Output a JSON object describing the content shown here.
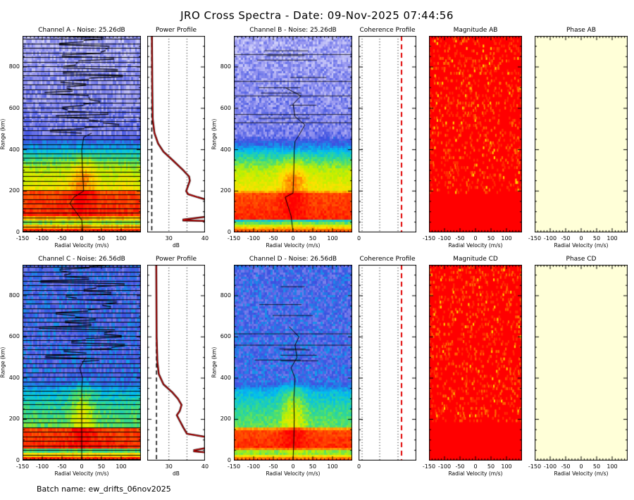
{
  "title": "JRO Cross Spectra - Date: 09-Nov-2025 07:44:56",
  "batch": "Batch name: ew_drifts_06nov2025",
  "colors": {
    "accent": "#ff0000",
    "phase_fill": "#ffffd8",
    "magnitude_fill": "#ff0000"
  },
  "labels": {
    "range": "Range (km)",
    "velocity": "Radial Velocity (m/s)",
    "db": "dB",
    "coh_zero": "0"
  },
  "chart_data": [
    {
      "type": "heatmap",
      "title": "Channel A - Noise: 25.26dB",
      "noise_db": 25.26,
      "xlim": [
        -150,
        150
      ],
      "ylim": [
        0,
        950
      ],
      "xticks": [
        "-150",
        "-100",
        "-50",
        "0",
        "50",
        "100"
      ],
      "yticks": [
        "0",
        "200",
        "400",
        "600",
        "800"
      ],
      "doppler": [
        [
          0,
          3
        ],
        [
          60,
          0
        ],
        [
          100,
          -15
        ],
        [
          140,
          -30
        ],
        [
          170,
          -20
        ],
        [
          200,
          5
        ],
        [
          300,
          2
        ],
        [
          400,
          0
        ],
        [
          460,
          5
        ],
        [
          480,
          25
        ]
      ]
    },
    {
      "type": "line",
      "title": "Power Profile",
      "xlim": [
        24,
        40
      ],
      "xticks": [
        "30",
        "40"
      ],
      "xlabel": "dB",
      "noise_db": 25.26,
      "points": [
        [
          950,
          25.3
        ],
        [
          700,
          25.4
        ],
        [
          550,
          25.5
        ],
        [
          480,
          26
        ],
        [
          430,
          27
        ],
        [
          390,
          28.5
        ],
        [
          350,
          31
        ],
        [
          300,
          34
        ],
        [
          270,
          35.6
        ],
        [
          250,
          35.8
        ],
        [
          220,
          35.2
        ],
        [
          200,
          34.8
        ],
        [
          185,
          35.3
        ],
        [
          170,
          38
        ],
        [
          160,
          40
        ],
        [
          75,
          40
        ],
        [
          62,
          34
        ],
        [
          58,
          34
        ],
        [
          55,
          40
        ]
      ]
    },
    {
      "type": "heatmap",
      "title": "Channel B - Noise: 25.26dB",
      "noise_db": 25.26,
      "xlim": [
        -150,
        150
      ],
      "ylim": [
        0,
        950
      ],
      "xticks": [
        "-150",
        "-100",
        "-50",
        "0",
        "50",
        "100"
      ],
      "yticks": [
        "0",
        "200",
        "400",
        "600",
        "800"
      ],
      "doppler": [
        [
          0,
          0
        ],
        [
          80,
          -5
        ],
        [
          110,
          -10
        ],
        [
          140,
          -15
        ],
        [
          170,
          -20
        ],
        [
          190,
          0
        ],
        [
          300,
          2
        ],
        [
          400,
          3
        ],
        [
          440,
          5
        ],
        [
          470,
          15
        ],
        [
          520,
          30
        ],
        [
          560,
          5
        ],
        [
          620,
          0
        ],
        [
          660,
          20
        ],
        [
          700,
          -20
        ]
      ]
    },
    {
      "type": "line",
      "title": "Coherence Profile",
      "xlabel": "0",
      "threshold": "red-dashed"
    },
    {
      "type": "heatmap",
      "title": "Magnitude AB",
      "xlim": [
        -150,
        150
      ],
      "xticks": [
        "-150",
        "-100",
        "-50",
        "0",
        "50",
        "100"
      ]
    },
    {
      "type": "heatmap",
      "title": "Phase AB",
      "xlim": [
        -150,
        150
      ],
      "xticks": [
        "-150",
        "-100",
        "-50",
        "0",
        "50",
        "100"
      ]
    },
    {
      "type": "heatmap",
      "title": "Channel C - Noise: 26.56dB",
      "noise_db": 26.56,
      "xlim": [
        -150,
        150
      ],
      "ylim": [
        0,
        950
      ],
      "xticks": [
        "-150",
        "-100",
        "-50",
        "0",
        "50",
        "100"
      ],
      "yticks": [
        "0",
        "200",
        "400",
        "600",
        "800"
      ],
      "doppler": [
        [
          0,
          0
        ],
        [
          100,
          0
        ],
        [
          150,
          0
        ],
        [
          250,
          0
        ],
        [
          350,
          0
        ],
        [
          400,
          2
        ],
        [
          450,
          -5
        ],
        [
          500,
          10
        ]
      ]
    },
    {
      "type": "line",
      "title": "Power Profile",
      "xlim": [
        24,
        40
      ],
      "xticks": [
        "30",
        "40"
      ],
      "xlabel": "dB",
      "noise_db": 26.56,
      "points": [
        [
          950,
          26.5
        ],
        [
          600,
          26.6
        ],
        [
          480,
          26.8
        ],
        [
          420,
          27.2
        ],
        [
          370,
          28.5
        ],
        [
          330,
          31
        ],
        [
          300,
          32.5
        ],
        [
          270,
          33.5
        ],
        [
          240,
          33
        ],
        [
          220,
          32.2
        ],
        [
          200,
          32.8
        ],
        [
          160,
          34
        ],
        [
          130,
          35
        ],
        [
          115,
          40
        ],
        [
          60,
          40
        ],
        [
          50,
          37
        ],
        [
          45,
          37
        ],
        [
          40,
          40
        ]
      ]
    },
    {
      "type": "heatmap",
      "title": "Channel D - Noise: 26.56dB",
      "noise_db": 26.56,
      "xlim": [
        -150,
        150
      ],
      "ylim": [
        0,
        950
      ],
      "xticks": [
        "-150",
        "-100",
        "-50",
        "0",
        "50",
        "100"
      ],
      "yticks": [
        "0",
        "200",
        "400",
        "600",
        "800"
      ],
      "doppler": [
        [
          0,
          0
        ],
        [
          100,
          2
        ],
        [
          200,
          3
        ],
        [
          300,
          2
        ],
        [
          400,
          5
        ],
        [
          450,
          -5
        ],
        [
          500,
          10
        ],
        [
          560,
          5
        ],
        [
          600,
          15
        ],
        [
          650,
          -10
        ]
      ]
    },
    {
      "type": "line",
      "title": "Coherence Profile",
      "xlabel": "0",
      "threshold": "red-dashed"
    },
    {
      "type": "heatmap",
      "title": "Magnitude CD",
      "xlim": [
        -150,
        150
      ],
      "xticks": [
        "-150",
        "-100",
        "-50",
        "0",
        "50",
        "100"
      ]
    },
    {
      "type": "heatmap",
      "title": "Phase CD",
      "xlim": [
        -150,
        150
      ],
      "xticks": [
        "-150",
        "-100",
        "-50",
        "0",
        "50",
        "100"
      ]
    }
  ]
}
